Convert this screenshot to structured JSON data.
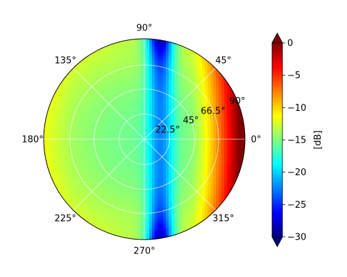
{
  "chart_data": {
    "type": "heatmap",
    "projection": "polar",
    "title": "",
    "theta_tick_labels": [
      "0°",
      "45°",
      "90°",
      "135°",
      "180°",
      "225°",
      "270°",
      "315°"
    ],
    "theta_ticks_deg": [
      0,
      45,
      90,
      135,
      180,
      225,
      270,
      315
    ],
    "r_tick_labels": [
      "22.5°",
      "45°",
      "66.5°",
      "90°"
    ],
    "r_ticks": [
      22.5,
      45,
      66.5,
      90
    ],
    "r_range": [
      0,
      90
    ],
    "grid": true,
    "colormap": "jet",
    "colorbar": {
      "label": "[dB]",
      "range": [
        -30,
        0
      ],
      "ticks": [
        0,
        -5,
        -10,
        -15,
        -20,
        -25,
        -30
      ],
      "tick_labels": [
        "0",
        "−5",
        "−10",
        "−15",
        "−20",
        "−25",
        "−30"
      ],
      "extend": "both",
      "position": "right"
    },
    "field_description_points": [
      {
        "theta_deg": 0,
        "r": 90,
        "value_db": -1
      },
      {
        "theta_deg": 0,
        "r": 66.5,
        "value_db": -7
      },
      {
        "theta_deg": 0,
        "r": 45,
        "value_db": -14
      },
      {
        "theta_deg": 0,
        "r": 0,
        "value_db": -15
      },
      {
        "theta_deg": 90,
        "r": 60,
        "value_db": -24
      },
      {
        "theta_deg": 90,
        "r": 88,
        "value_db": -29
      },
      {
        "theta_deg": 180,
        "r": 90,
        "value_db": -11
      },
      {
        "theta_deg": 180,
        "r": 45,
        "value_db": -15
      },
      {
        "theta_deg": 270,
        "r": 88,
        "value_db": -29
      },
      {
        "theta_deg": 270,
        "r": 60,
        "value_db": -24
      }
    ]
  }
}
